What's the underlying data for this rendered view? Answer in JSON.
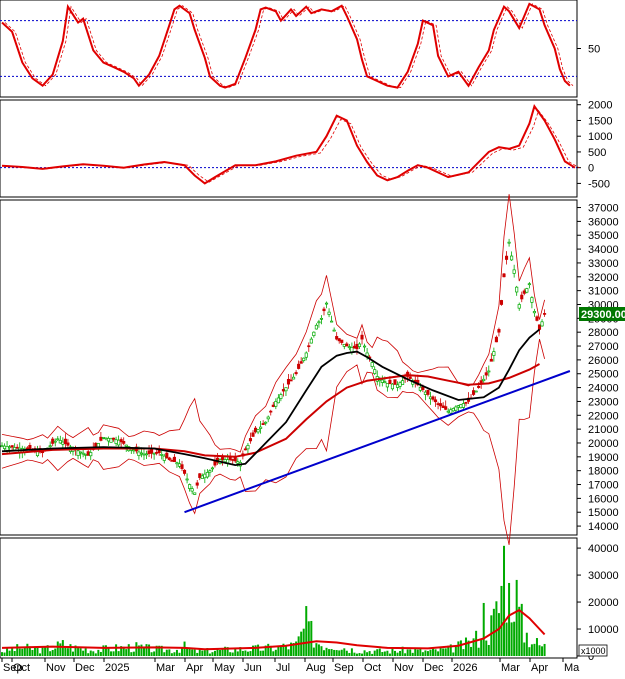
{
  "chart_data": [
    {
      "type": "line",
      "panel": "oscillator",
      "series": [],
      "y_ticks": [
        "50"
      ],
      "reference_levels": [
        80,
        20
      ],
      "ylim": [
        0,
        100
      ],
      "colors": {
        "main": "#e00000",
        "signal": "#e00000",
        "reference": "#0000cc"
      },
      "approx_path": [
        [
          0,
          78
        ],
        [
          2,
          68
        ],
        [
          4,
          35
        ],
        [
          6,
          18
        ],
        [
          8,
          10
        ],
        [
          10,
          22
        ],
        [
          12,
          58
        ],
        [
          13,
          95
        ],
        [
          15,
          78
        ],
        [
          16,
          82
        ],
        [
          18,
          48
        ],
        [
          20,
          35
        ],
        [
          22,
          30
        ],
        [
          24,
          25
        ],
        [
          26,
          18
        ],
        [
          27,
          10
        ],
        [
          29,
          22
        ],
        [
          31,
          42
        ],
        [
          33,
          75
        ],
        [
          34,
          92
        ],
        [
          35,
          96
        ],
        [
          37,
          88
        ],
        [
          38,
          70
        ],
        [
          40,
          40
        ],
        [
          41,
          20
        ],
        [
          43,
          10
        ],
        [
          44,
          8
        ],
        [
          46,
          12
        ],
        [
          48,
          40
        ],
        [
          50,
          70
        ],
        [
          51,
          92
        ],
        [
          52,
          94
        ],
        [
          54,
          90
        ],
        [
          55,
          80
        ],
        [
          57,
          92
        ],
        [
          58,
          85
        ],
        [
          60,
          95
        ],
        [
          61,
          88
        ],
        [
          63,
          92
        ],
        [
          65,
          90
        ],
        [
          67,
          96
        ],
        [
          68,
          85
        ],
        [
          70,
          60
        ],
        [
          71,
          38
        ],
        [
          72,
          20
        ],
        [
          74,
          15
        ],
        [
          76,
          10
        ],
        [
          78,
          8
        ],
        [
          80,
          25
        ],
        [
          82,
          55
        ],
        [
          83,
          80
        ],
        [
          85,
          75
        ],
        [
          86,
          42
        ],
        [
          88,
          20
        ],
        [
          90,
          25
        ],
        [
          92,
          10
        ],
        [
          94,
          30
        ],
        [
          96,
          48
        ],
        [
          97,
          70
        ],
        [
          99,
          95
        ],
        [
          100,
          90
        ],
        [
          102,
          72
        ],
        [
          103,
          85
        ],
        [
          104,
          98
        ],
        [
          106,
          92
        ],
        [
          107,
          75
        ],
        [
          109,
          50
        ],
        [
          110,
          28
        ],
        [
          111,
          15
        ],
        [
          112,
          10
        ]
      ]
    },
    {
      "type": "line",
      "panel": "macd",
      "series": [],
      "y_ticks": [
        "2000",
        "1500",
        "1000",
        "500",
        "0",
        "-500"
      ],
      "ylim": [
        -900,
        2150
      ],
      "colors": {
        "main": "#e00000",
        "signal": "#e00000",
        "zero_line": "#0000cc"
      },
      "approx_path": [
        [
          0,
          60
        ],
        [
          4,
          20
        ],
        [
          8,
          -40
        ],
        [
          12,
          40
        ],
        [
          16,
          110
        ],
        [
          20,
          60
        ],
        [
          24,
          0
        ],
        [
          28,
          100
        ],
        [
          32,
          180
        ],
        [
          36,
          80
        ],
        [
          38,
          -250
        ],
        [
          40,
          -500
        ],
        [
          42,
          -300
        ],
        [
          46,
          80
        ],
        [
          50,
          80
        ],
        [
          54,
          200
        ],
        [
          58,
          380
        ],
        [
          62,
          500
        ],
        [
          64,
          1000
        ],
        [
          66,
          1650
        ],
        [
          68,
          1500
        ],
        [
          70,
          700
        ],
        [
          72,
          180
        ],
        [
          74,
          -250
        ],
        [
          76,
          -400
        ],
        [
          78,
          -300
        ],
        [
          80,
          -100
        ],
        [
          82,
          80
        ],
        [
          84,
          0
        ],
        [
          88,
          -300
        ],
        [
          92,
          -150
        ],
        [
          96,
          500
        ],
        [
          98,
          650
        ],
        [
          100,
          600
        ],
        [
          102,
          700
        ],
        [
          104,
          1400
        ],
        [
          105,
          1950
        ],
        [
          107,
          1500
        ],
        [
          109,
          900
        ],
        [
          111,
          200
        ],
        [
          113,
          0
        ]
      ]
    },
    {
      "type": "line",
      "panel": "price",
      "series": [],
      "y_ticks": [
        "37000",
        "36000",
        "35000",
        "34000",
        "33000",
        "32000",
        "31000",
        "30000",
        "29000",
        "28000",
        "27000",
        "26000",
        "25000",
        "24000",
        "23000",
        "22000",
        "21000",
        "20000",
        "19000",
        "18000",
        "17000",
        "16000",
        "15000",
        "14000"
      ],
      "ylim": [
        13500,
        37400
      ],
      "last_price": "29300.00",
      "colors": {
        "candles": "#00aa00",
        "ma_black": "#000000",
        "ma_red": "#cc0000",
        "bollinger": "#cc0000",
        "trendline": "#0000cc",
        "badge": "#007700"
      },
      "x_categories": [
        "Sep",
        "Oct",
        "Nov",
        "Dec",
        "2025",
        "Mar",
        "Apr",
        "May",
        "Jun",
        "Jul",
        "Aug",
        "Sep",
        "Oct",
        "Nov",
        "Dec",
        "2026",
        "Mar",
        "Apr",
        "Ma"
      ],
      "approx_close": [
        [
          0,
          19800
        ],
        [
          4,
          19600
        ],
        [
          8,
          19300
        ],
        [
          11,
          20300
        ],
        [
          14,
          19600
        ],
        [
          17,
          19100
        ],
        [
          20,
          20400
        ],
        [
          23,
          20200
        ],
        [
          26,
          19500
        ],
        [
          28,
          19200
        ],
        [
          31,
          19300
        ],
        [
          33,
          18800
        ],
        [
          35,
          18500
        ],
        [
          36,
          17800
        ],
        [
          37,
          17000
        ],
        [
          38,
          16400
        ],
        [
          39,
          17500
        ],
        [
          41,
          18000
        ],
        [
          43,
          18800
        ],
        [
          45,
          18800
        ],
        [
          47,
          18600
        ],
        [
          48,
          19500
        ],
        [
          50,
          20800
        ],
        [
          52,
          21500
        ],
        [
          54,
          23000
        ],
        [
          56,
          24000
        ],
        [
          58,
          25000
        ],
        [
          60,
          26500
        ],
        [
          62,
          28500
        ],
        [
          63,
          29000
        ],
        [
          64,
          30100
        ],
        [
          65,
          28800
        ],
        [
          66,
          27500
        ],
        [
          68,
          27000
        ],
        [
          70,
          26800
        ],
        [
          71,
          27500
        ],
        [
          72,
          26500
        ],
        [
          73,
          25800
        ],
        [
          74,
          24800
        ],
        [
          76,
          24300
        ],
        [
          78,
          24200
        ],
        [
          80,
          24800
        ],
        [
          82,
          24200
        ],
        [
          84,
          23500
        ],
        [
          86,
          22800
        ],
        [
          88,
          22300
        ],
        [
          90,
          22700
        ],
        [
          92,
          23000
        ],
        [
          94,
          24000
        ],
        [
          96,
          25200
        ],
        [
          98,
          28000
        ],
        [
          99,
          32000
        ],
        [
          100,
          34500
        ],
        [
          101,
          32500
        ],
        [
          102,
          30000
        ],
        [
          103,
          30800
        ],
        [
          104,
          31500
        ],
        [
          105,
          29500
        ],
        [
          106,
          28200
        ],
        [
          107,
          29300
        ]
      ],
      "approx_ma_black": [
        [
          0,
          19400
        ],
        [
          10,
          19600
        ],
        [
          20,
          19700
        ],
        [
          30,
          19600
        ],
        [
          36,
          19200
        ],
        [
          40,
          18900
        ],
        [
          46,
          18400
        ],
        [
          48,
          18500
        ],
        [
          52,
          20000
        ],
        [
          56,
          21500
        ],
        [
          60,
          23800
        ],
        [
          63,
          25500
        ],
        [
          66,
          26300
        ],
        [
          68,
          26500
        ],
        [
          70,
          26600
        ],
        [
          72,
          26200
        ],
        [
          75,
          25500
        ],
        [
          80,
          24600
        ],
        [
          85,
          23800
        ],
        [
          90,
          23100
        ],
        [
          95,
          23300
        ],
        [
          98,
          24000
        ],
        [
          100,
          25300
        ],
        [
          102,
          26700
        ],
        [
          104,
          27600
        ],
        [
          106,
          28200
        ]
      ],
      "approx_ma_red": [
        [
          0,
          19200
        ],
        [
          10,
          19500
        ],
        [
          20,
          19600
        ],
        [
          30,
          19600
        ],
        [
          36,
          19400
        ],
        [
          40,
          19100
        ],
        [
          46,
          19000
        ],
        [
          50,
          19300
        ],
        [
          56,
          20300
        ],
        [
          60,
          21700
        ],
        [
          64,
          23000
        ],
        [
          68,
          24000
        ],
        [
          72,
          24500
        ],
        [
          76,
          24700
        ],
        [
          80,
          24900
        ],
        [
          84,
          24800
        ],
        [
          88,
          24500
        ],
        [
          92,
          24200
        ],
        [
          96,
          24300
        ],
        [
          100,
          24700
        ],
        [
          104,
          25300
        ],
        [
          106,
          25700
        ]
      ],
      "trendline": [
        [
          36,
          15000
        ],
        [
          112,
          25200
        ]
      ]
    },
    {
      "type": "bar",
      "panel": "volume",
      "series": [],
      "y_ticks": [
        "40000",
        "30000",
        "20000",
        "10000",
        "0"
      ],
      "ylim": [
        0,
        43000
      ],
      "unit_label": "x1000",
      "colors": {
        "bars": "#00aa00",
        "ma": "#e00000"
      },
      "approx_volume": [
        [
          0,
          2000
        ],
        [
          4,
          3500
        ],
        [
          8,
          2500
        ],
        [
          12,
          4800
        ],
        [
          14,
          3500
        ],
        [
          18,
          2500
        ],
        [
          22,
          3200
        ],
        [
          26,
          3800
        ],
        [
          30,
          2800
        ],
        [
          34,
          2500
        ],
        [
          36,
          3800
        ],
        [
          38,
          1800
        ],
        [
          42,
          2300
        ],
        [
          46,
          2800
        ],
        [
          50,
          3000
        ],
        [
          54,
          3500
        ],
        [
          58,
          4500
        ],
        [
          60,
          13000
        ],
        [
          62,
          6000
        ],
        [
          64,
          4500
        ],
        [
          66,
          5000
        ],
        [
          68,
          3000
        ],
        [
          70,
          2500
        ],
        [
          72,
          2200
        ],
        [
          76,
          2000
        ],
        [
          80,
          2500
        ],
        [
          84,
          2000
        ],
        [
          88,
          2800
        ],
        [
          90,
          4000
        ],
        [
          92,
          5000
        ],
        [
          94,
          8000
        ],
        [
          95,
          17000
        ],
        [
          96,
          10000
        ],
        [
          98,
          20000
        ],
        [
          99,
          40000
        ],
        [
          100,
          25000
        ],
        [
          101,
          30000
        ],
        [
          102,
          18000
        ],
        [
          103,
          10000
        ],
        [
          104,
          8000
        ],
        [
          105,
          6000
        ],
        [
          106,
          4500
        ],
        [
          107,
          4000
        ]
      ],
      "approx_volume_ma": [
        [
          0,
          3000
        ],
        [
          10,
          3500
        ],
        [
          20,
          3000
        ],
        [
          30,
          3200
        ],
        [
          36,
          3000
        ],
        [
          40,
          2500
        ],
        [
          50,
          3000
        ],
        [
          56,
          3800
        ],
        [
          62,
          5500
        ],
        [
          66,
          5000
        ],
        [
          70,
          4000
        ],
        [
          76,
          3000
        ],
        [
          84,
          2800
        ],
        [
          90,
          3800
        ],
        [
          95,
          6500
        ],
        [
          98,
          10000
        ],
        [
          100,
          15000
        ],
        [
          102,
          17000
        ],
        [
          104,
          14000
        ],
        [
          106,
          10000
        ],
        [
          107,
          8000
        ]
      ]
    }
  ]
}
